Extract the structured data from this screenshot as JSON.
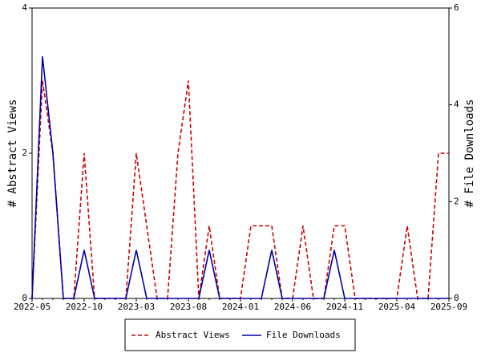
{
  "chart_data": {
    "type": "line",
    "categories": [
      "2022-05",
      null,
      null,
      null,
      null,
      "2022-10",
      null,
      null,
      null,
      null,
      "2023-03",
      null,
      null,
      null,
      null,
      "2023-08",
      null,
      null,
      null,
      null,
      "2024-01",
      null,
      null,
      null,
      null,
      "2024-06",
      null,
      null,
      null,
      null,
      "2024-11",
      null,
      null,
      null,
      null,
      "2025-04",
      null,
      null,
      null,
      null,
      "2025-09"
    ],
    "y_label": "# Abstract Views",
    "y2_label": "# File Downloads",
    "ylim": [
      0,
      4
    ],
    "yticks": [
      0,
      2,
      4
    ],
    "y2lim": [
      0,
      6
    ],
    "y2ticks": [
      0,
      2,
      4,
      6
    ],
    "series": [
      {
        "name": "Abstract Views",
        "color": "#cc0000",
        "dash": true,
        "values": [
          0,
          3,
          2,
          0,
          0,
          2,
          0,
          0,
          0,
          0,
          2,
          1,
          0,
          0,
          2,
          3,
          0,
          1,
          0,
          0,
          0,
          1,
          1,
          1,
          0,
          0,
          1,
          0,
          0,
          1,
          1,
          0,
          0,
          0,
          0,
          0,
          1,
          0,
          0,
          2,
          2
        ]
      },
      {
        "name": "File Downloads",
        "color": "#0000aa",
        "dash": false,
        "axis": "y2",
        "values": [
          0,
          5,
          3,
          0,
          0,
          1,
          0,
          0,
          0,
          0,
          1,
          0,
          0,
          0,
          0,
          0,
          0,
          1,
          0,
          0,
          0,
          0,
          0,
          1,
          0,
          0,
          0,
          0,
          0,
          1,
          0,
          0,
          0,
          0,
          0,
          0,
          0,
          0,
          0,
          0,
          0
        ]
      }
    ]
  }
}
